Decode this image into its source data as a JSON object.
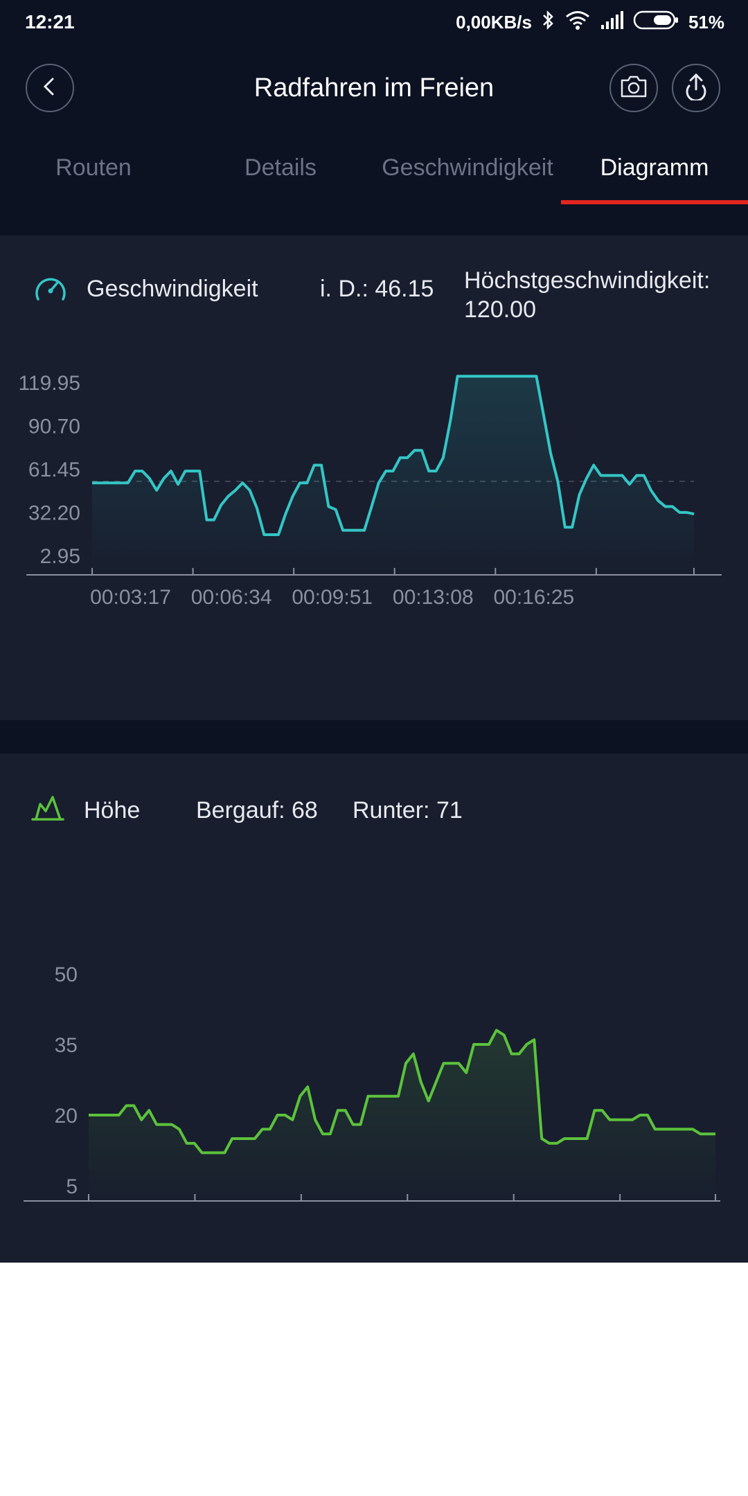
{
  "status_bar": {
    "time": "12:21",
    "network_speed": "0,00KB/s",
    "battery": "51%",
    "icons": [
      "bluetooth-icon",
      "wifi-icon",
      "signal-icon",
      "battery-icon"
    ]
  },
  "header": {
    "title": "Radfahren im Freien",
    "back_icon": "chevron-left-icon",
    "camera_icon": "camera-icon",
    "share_icon": "upload-icon"
  },
  "tabs": [
    {
      "label": "Routen",
      "active": false
    },
    {
      "label": "Details",
      "active": false
    },
    {
      "label": "Geschwindigkeit",
      "active": false
    },
    {
      "label": "Diagramm",
      "active": true
    }
  ],
  "speed_card": {
    "label": "Geschwindigkeit",
    "average_text": "i. D.: 46.15",
    "max_label": "Höchstgeschwindigkeit:",
    "max_value": "120.00",
    "icon": "speedometer-icon"
  },
  "altitude_card": {
    "label": "Höhe",
    "uphill_text": "Bergauf: 68",
    "downhill_text": "Runter: 71",
    "icon": "mountain-icon"
  },
  "colors": {
    "background": "#0c1222",
    "card": "#181e2e",
    "speed_line": "#34c6c6",
    "altitude_line": "#5cc23c",
    "tab_accent": "#e2261f"
  },
  "chart_data": [
    {
      "type": "area",
      "series": [
        {
          "values": [
            52,
            52,
            52,
            52,
            52,
            52,
            60,
            60,
            55,
            47,
            55,
            60,
            51,
            60,
            60,
            60,
            27,
            27,
            37,
            43,
            47,
            52,
            47,
            35,
            17,
            17,
            17,
            31,
            43,
            52,
            52,
            64,
            64,
            36,
            34,
            20,
            20,
            20,
            20,
            36,
            52,
            60,
            60,
            69,
            69,
            74,
            74,
            60,
            60,
            69,
            94,
            124,
            124,
            124,
            124,
            124,
            124,
            124,
            124,
            124,
            124,
            124,
            124,
            98,
            72,
            53,
            22,
            22,
            44,
            55,
            64,
            57,
            57,
            57,
            57,
            51,
            57,
            57,
            47,
            40,
            36,
            36,
            32,
            32,
            31
          ]
        }
      ],
      "x_unit": "seconds",
      "x_step": 14,
      "yticks": [
        "119.95",
        "90.70",
        "61.45",
        "32.20",
        "2.95"
      ],
      "xticks": [
        "00:03:17",
        "00:06:34",
        "00:09:51",
        "00:13:08",
        "00:16:25"
      ],
      "ylim": [
        2.95,
        119.95
      ]
    },
    {
      "type": "area",
      "series": [
        {
          "values": [
            20,
            20,
            20,
            20,
            20,
            22,
            22,
            19,
            21,
            18,
            18,
            18,
            17,
            14,
            14,
            12,
            12,
            12,
            12,
            15,
            15,
            15,
            15,
            17,
            17,
            20,
            20,
            19,
            24,
            26,
            19,
            16,
            16,
            21,
            21,
            18,
            18,
            24,
            24,
            24,
            24,
            24,
            31,
            33,
            27,
            23,
            27,
            31,
            31,
            31,
            29,
            35,
            35,
            35,
            38,
            37,
            33,
            33,
            35,
            36,
            15,
            14,
            14,
            15,
            15,
            15,
            15,
            21,
            21,
            19,
            19,
            19,
            19,
            20,
            20,
            17,
            17,
            17,
            17,
            17,
            17,
            16,
            16,
            16
          ]
        }
      ],
      "x_unit": "seconds",
      "x_step": 14,
      "yticks": [
        "50",
        "35",
        "20",
        "5"
      ],
      "xticks": [
        "00:03:17",
        "00:06:34",
        "00:09:51",
        "00:13:08",
        "00:16:25"
      ],
      "ylim": [
        5,
        50
      ]
    }
  ]
}
